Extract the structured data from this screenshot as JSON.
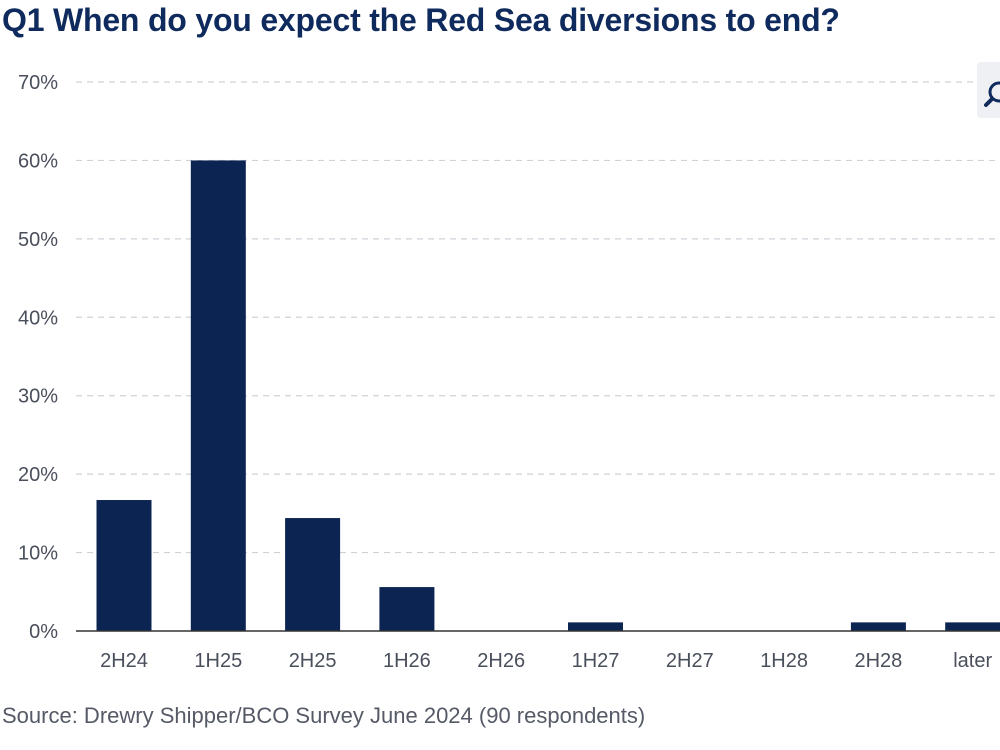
{
  "title": "Q1 When do you expect the Red Sea diversions to end?",
  "source": "Source: Drewry Shipper/BCO Survey June 2024 (90 respondents)",
  "toolbar": {
    "zoom_icon": "magnifier-icon"
  },
  "colors": {
    "bar": "#0c2451",
    "grid": "#cfd2d8",
    "axis": "#333333"
  },
  "chart_data": {
    "type": "bar",
    "categories": [
      "2H24",
      "1H25",
      "2H25",
      "1H26",
      "2H26",
      "1H27",
      "2H27",
      "1H28",
      "2H28",
      "later"
    ],
    "values": [
      16.7,
      60,
      14.4,
      5.6,
      0,
      1.1,
      0,
      0,
      1.1,
      1.1
    ],
    "title": "Q1 When do you expect the Red Sea diversions to end?",
    "xlabel": "",
    "ylabel": "",
    "ylim": [
      0,
      70
    ],
    "yticks": [
      0,
      10,
      20,
      30,
      40,
      50,
      60,
      70
    ],
    "yticklabels": [
      "0%",
      "10%",
      "20%",
      "30%",
      "40%",
      "50%",
      "60%",
      "70%"
    ],
    "grid": true,
    "legend": "none"
  }
}
